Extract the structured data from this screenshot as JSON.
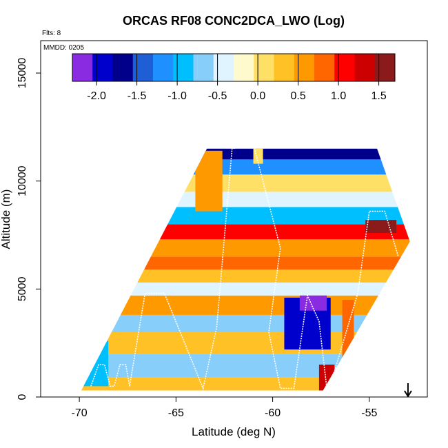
{
  "chart_data": {
    "type": "heatmap",
    "title": "ORCAS RF08 CONC2DCA_LWO (Log)",
    "flights_label": "Flts: 8",
    "date_label": "MMDD: 0205",
    "xlabel": "Latitude (deg N)",
    "ylabel": "Altitude (m)",
    "xlim": [
      -72,
      -52
    ],
    "ylim": [
      0,
      16500
    ],
    "x_ticks": [
      -70,
      -65,
      -60,
      -55
    ],
    "y_ticks": [
      0,
      5000,
      10000,
      15000
    ],
    "grid": false,
    "colorbar": {
      "placement": "top inside plot",
      "range": [
        -2.3,
        1.7
      ],
      "ticks": [
        -2.0,
        -1.5,
        -1.0,
        -0.5,
        0.0,
        0.5,
        1.0,
        1.5
      ],
      "tick_labels": [
        "-2.0",
        "-1.5",
        "-1.0",
        "-0.5",
        "0.0",
        "0.5",
        "1.0",
        "1.5"
      ],
      "colors": [
        "#8a2be2",
        "#0000cd",
        "#00008b",
        "#1e5fd6",
        "#1e90ff",
        "#00bfff",
        "#87cefa",
        "#e0f4ff",
        "#fffacd",
        "#ffe066",
        "#ffc125",
        "#ff9900",
        "#ff6600",
        "#ff0000",
        "#cc0000",
        "#8b1a1a"
      ]
    },
    "arrow_marker": {
      "x": -53.0,
      "direction": "down"
    },
    "region": {
      "polygon_deg_m": [
        [
          -69.9,
          300
        ],
        [
          -63.4,
          11500
        ],
        [
          -54.6,
          11500
        ],
        [
          -52.9,
          7200
        ],
        [
          -57.4,
          300
        ]
      ],
      "bands": [
        {
          "y": [
            300,
            900
          ],
          "value": 0.3
        },
        {
          "y": [
            900,
            2000
          ],
          "value": -0.7
        },
        {
          "y": [
            2000,
            3000
          ],
          "value": 0.4
        },
        {
          "y": [
            3000,
            3800
          ],
          "value": -0.6
        },
        {
          "y": [
            3800,
            4700
          ],
          "value": 0.6
        },
        {
          "y": [
            4700,
            5300
          ],
          "value": -0.3
        },
        {
          "y": [
            5300,
            5900
          ],
          "value": 0.2
        },
        {
          "y": [
            5900,
            6500
          ],
          "value": 0.8
        },
        {
          "y": [
            6500,
            7300
          ],
          "value": 0.5
        },
        {
          "y": [
            7300,
            8000
          ],
          "value": 1.1
        },
        {
          "y": [
            8000,
            8800
          ],
          "value": -0.9
        },
        {
          "y": [
            8800,
            9500
          ],
          "value": -0.4
        },
        {
          "y": [
            9500,
            10300
          ],
          "value": 0.1
        },
        {
          "y": [
            10300,
            11000
          ],
          "value": -1.2
        },
        {
          "y": [
            11000,
            11500
          ],
          "value": -1.6
        }
      ],
      "features": [
        {
          "x": [
            -59.4,
            -57.0
          ],
          "y": [
            2200,
            4600
          ],
          "value": -1.9
        },
        {
          "x": [
            -58.6,
            -57.2
          ],
          "y": [
            4000,
            4700
          ],
          "value": -2.1
        },
        {
          "x": [
            -57.6,
            -56.8
          ],
          "y": [
            300,
            1500
          ],
          "value": 1.4
        },
        {
          "x": [
            -56.4,
            -55.8
          ],
          "y": [
            1500,
            4500
          ],
          "value": 0.9
        },
        {
          "x": [
            -55.2,
            -53.6
          ],
          "y": [
            7600,
            8200
          ],
          "value": 1.5
        },
        {
          "x": [
            -70.0,
            -68.5
          ],
          "y": [
            500,
            2600
          ],
          "value": -0.9
        },
        {
          "x": [
            -64.0,
            -62.6
          ],
          "y": [
            8600,
            11400
          ],
          "value": 0.5
        },
        {
          "x": [
            -61.0,
            -60.5
          ],
          "y": [
            10800,
            11700
          ],
          "value": 0.0
        }
      ]
    },
    "flight_track": [
      [
        -69.4,
        500
      ],
      [
        -69.0,
        1500
      ],
      [
        -68.7,
        1500
      ],
      [
        -68.4,
        500
      ],
      [
        -68.2,
        500
      ],
      [
        -67.9,
        1500
      ],
      [
        -67.6,
        1500
      ],
      [
        -67.4,
        500
      ],
      [
        -66.6,
        4800
      ],
      [
        -65.6,
        4800
      ],
      [
        -63.6,
        400
      ],
      [
        -62.9,
        3200
      ],
      [
        -62.1,
        11500
      ],
      [
        -61.0,
        11700
      ],
      [
        -59.6,
        6900
      ],
      [
        -60.2,
        3000
      ],
      [
        -59.6,
        400
      ],
      [
        -58.9,
        400
      ],
      [
        -58.2,
        4700
      ],
      [
        -57.6,
        3500
      ],
      [
        -57.2,
        400
      ],
      [
        -56.8,
        1200
      ],
      [
        -55.6,
        4800
      ],
      [
        -55.0,
        8600
      ],
      [
        -54.2,
        8600
      ],
      [
        -53.5,
        6500
      ]
    ]
  }
}
